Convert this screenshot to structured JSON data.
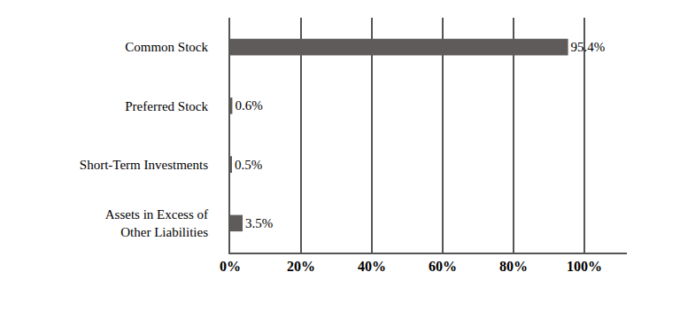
{
  "chart_data": {
    "type": "bar",
    "orientation": "horizontal",
    "categories": [
      "Common Stock",
      "Preferred Stock",
      "Short-Term Investments",
      "Assets in Excess of Other Liabilities"
    ],
    "values": [
      95.4,
      0.6,
      0.5,
      3.5
    ],
    "value_labels": [
      "95.4%",
      "0.6%",
      "0.5%",
      "3.5%"
    ],
    "color": "#5f5b5b",
    "xlim": [
      0,
      112
    ],
    "xticks": [
      {
        "value": 0,
        "label": "0%"
      },
      {
        "value": 20,
        "label": "20%"
      },
      {
        "value": 40,
        "label": "40%"
      },
      {
        "value": 60,
        "label": "60%"
      },
      {
        "value": 80,
        "label": "80%"
      },
      {
        "value": 100,
        "label": "100%"
      }
    ],
    "grid": true,
    "data_labels": true
  }
}
